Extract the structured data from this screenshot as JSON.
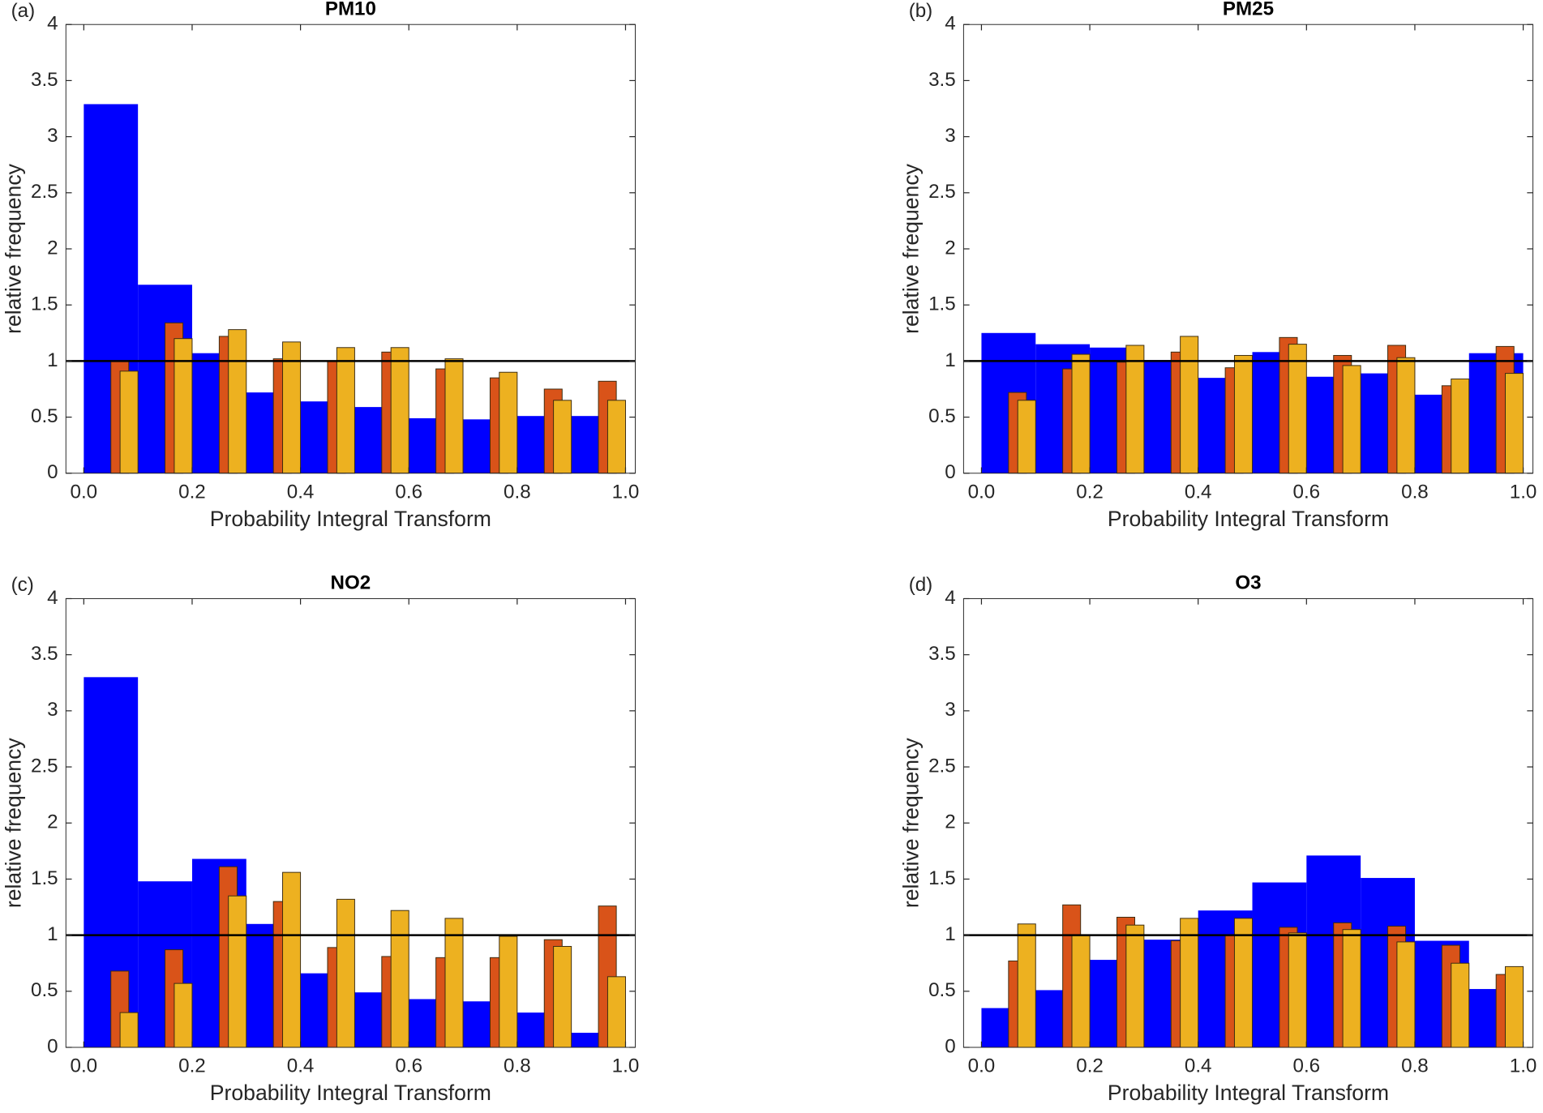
{
  "chart_data": [
    {
      "type": "histogram",
      "label": "(a)",
      "title": "PM10",
      "xlabel": "Probability Integral Transform",
      "ylabel": "relative frequency",
      "bins": [
        0,
        0.1,
        0.2,
        0.3,
        0.4,
        0.5,
        0.6,
        0.7,
        0.8,
        0.9,
        1.0
      ],
      "color": "#0000ff",
      "values": [
        3.29,
        1.68,
        1.07,
        0.72,
        0.64,
        0.59,
        0.49,
        0.48,
        0.51,
        0.51
      ],
      "series": [
        {
          "color": "#d95319",
          "values": [
            1.0,
            1.34,
            1.22,
            1.02,
            1.0,
            1.08,
            0.93,
            0.85,
            0.75,
            0.82
          ]
        },
        {
          "color": "#edb120",
          "values": [
            0.91,
            1.2,
            1.28,
            1.17,
            1.12,
            1.12,
            1.02,
            0.9,
            0.65,
            0.65
          ]
        }
      ],
      "reference_line": 1,
      "xlim": [
        -0.033,
        1.018
      ],
      "ylim": [
        0,
        4
      ],
      "xticks": [
        {
          "value": 0,
          "label": "0.0"
        },
        0.2,
        0.4,
        0.6,
        0.8,
        {
          "value": 1,
          "label": "1.0"
        }
      ],
      "yticks": [
        0,
        0.5,
        1,
        1.5,
        2,
        2.5,
        3,
        3.5,
        4
      ]
    },
    {
      "type": "histogram",
      "label": "(b)",
      "title": "PM25",
      "xlabel": "Probability Integral Transform",
      "ylabel": "relative frequency",
      "bins": [
        0,
        0.1,
        0.2,
        0.3,
        0.4,
        0.5,
        0.6,
        0.7,
        0.8,
        0.9,
        1.0
      ],
      "color": "#0000ff",
      "values": [
        1.25,
        1.15,
        1.12,
        1.01,
        0.85,
        1.08,
        0.86,
        0.89,
        0.7,
        1.07
      ],
      "series": [
        {
          "color": "#d95319",
          "values": [
            0.72,
            0.93,
            0.99,
            1.08,
            0.94,
            1.21,
            1.05,
            1.14,
            0.78,
            1.13
          ]
        },
        {
          "color": "#edb120",
          "values": [
            0.65,
            1.06,
            1.14,
            1.22,
            1.05,
            1.15,
            0.96,
            1.03,
            0.84,
            0.89
          ]
        }
      ],
      "reference_line": 1,
      "xlim": [
        -0.033,
        1.018
      ],
      "ylim": [
        0,
        4
      ],
      "xticks": [
        {
          "value": 0,
          "label": "0.0"
        },
        0.2,
        0.4,
        0.6,
        0.8,
        {
          "value": 1,
          "label": "1.0"
        }
      ],
      "yticks": [
        0,
        0.5,
        1,
        1.5,
        2,
        2.5,
        3,
        3.5,
        4
      ]
    },
    {
      "type": "histogram",
      "label": "(c)",
      "title": "NO2",
      "xlabel": "Probability Integral Transform",
      "ylabel": "relative frequency",
      "bins": [
        0,
        0.1,
        0.2,
        0.3,
        0.4,
        0.5,
        0.6,
        0.7,
        0.8,
        0.9,
        1.0
      ],
      "color": "#0000ff",
      "values": [
        3.3,
        1.48,
        1.68,
        1.1,
        0.66,
        0.49,
        0.43,
        0.41,
        0.31,
        0.13
      ],
      "series": [
        {
          "color": "#d95319",
          "values": [
            0.68,
            0.87,
            1.61,
            1.3,
            0.89,
            0.81,
            0.8,
            0.8,
            0.96,
            1.26
          ]
        },
        {
          "color": "#edb120",
          "values": [
            0.31,
            0.57,
            1.35,
            1.56,
            1.32,
            1.22,
            1.15,
            0.99,
            0.9,
            0.63
          ]
        }
      ],
      "reference_line": 1,
      "xlim": [
        -0.033,
        1.018
      ],
      "ylim": [
        0,
        4
      ],
      "xticks": [
        {
          "value": 0,
          "label": "0.0"
        },
        0.2,
        0.4,
        0.6,
        0.8,
        {
          "value": 1,
          "label": "1.0"
        }
      ],
      "yticks": [
        0,
        0.5,
        1,
        1.5,
        2,
        2.5,
        3,
        3.5,
        4
      ]
    },
    {
      "type": "histogram",
      "label": "(d)",
      "title": "O3",
      "xlabel": "Probability Integral Transform",
      "ylabel": "relative frequency",
      "bins": [
        0,
        0.1,
        0.2,
        0.3,
        0.4,
        0.5,
        0.6,
        0.7,
        0.8,
        0.9,
        1.0
      ],
      "color": "#0000ff",
      "values": [
        0.35,
        0.51,
        0.78,
        0.96,
        1.22,
        1.47,
        1.71,
        1.51,
        0.95,
        0.52
      ],
      "series": [
        {
          "color": "#d95319",
          "values": [
            0.77,
            1.27,
            1.16,
            0.95,
            1.0,
            1.07,
            1.11,
            1.08,
            0.91,
            0.65
          ]
        },
        {
          "color": "#edb120",
          "values": [
            1.1,
            1.0,
            1.09,
            1.15,
            1.15,
            1.02,
            1.05,
            0.94,
            0.75,
            0.72
          ]
        }
      ],
      "reference_line": 1,
      "xlim": [
        -0.033,
        1.018
      ],
      "ylim": [
        0,
        4
      ],
      "xticks": [
        {
          "value": 0,
          "label": "0.0"
        },
        0.2,
        0.4,
        0.6,
        0.8,
        {
          "value": 1,
          "label": "1.0"
        }
      ],
      "yticks": [
        0,
        0.5,
        1,
        1.5,
        2,
        2.5,
        3,
        3.5,
        4
      ]
    }
  ]
}
